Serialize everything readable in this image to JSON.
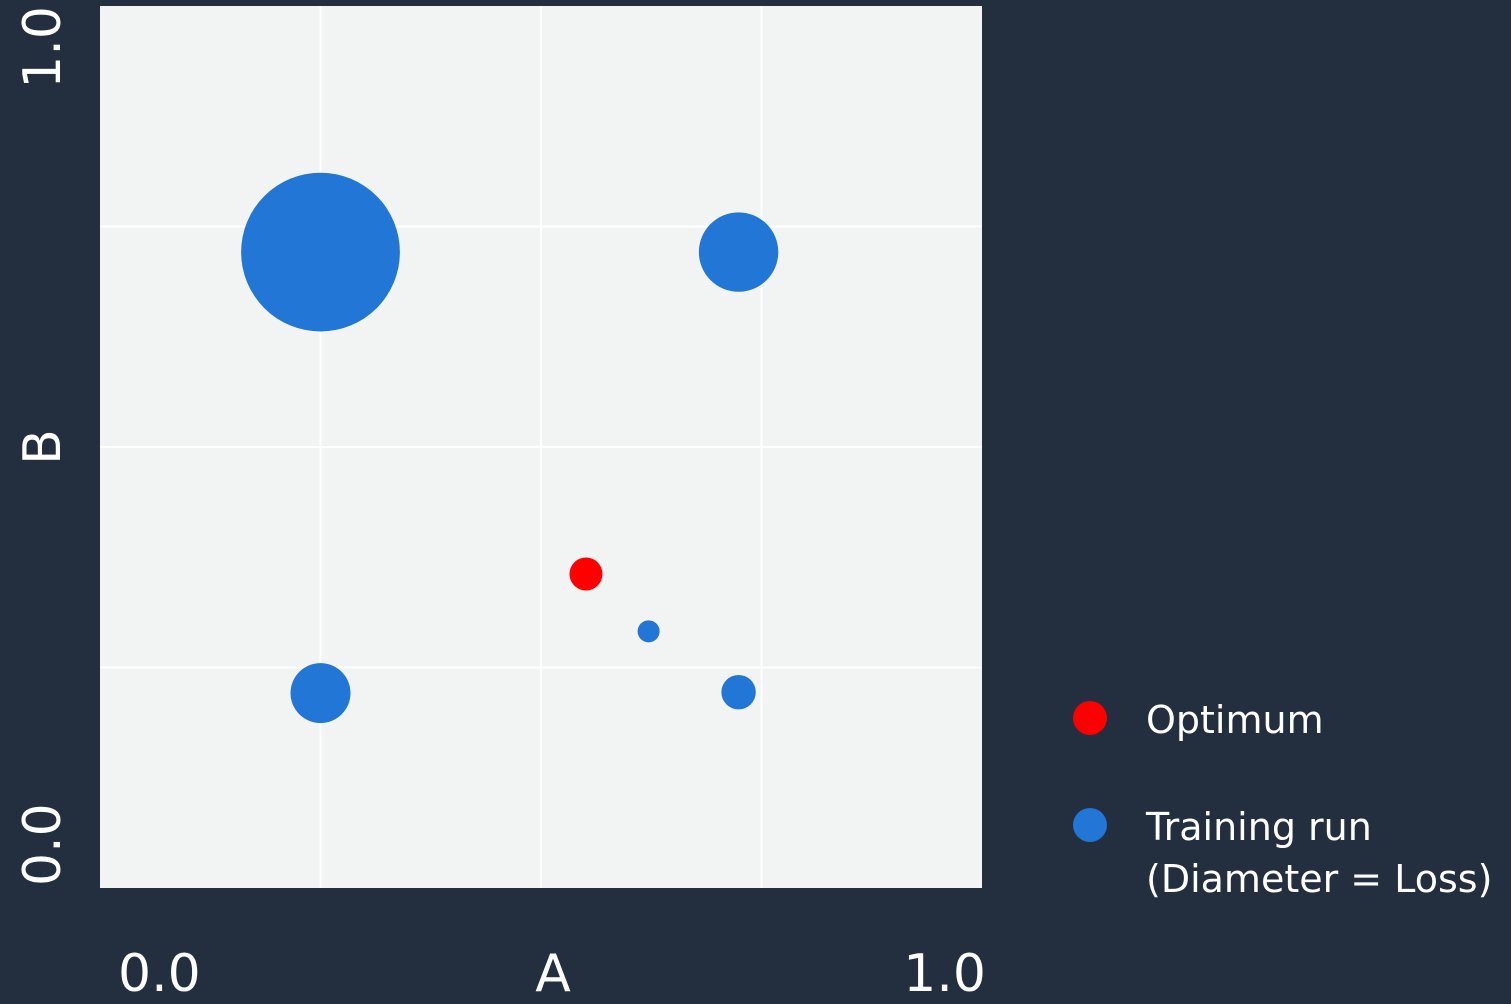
{
  "chart_data": {
    "type": "scatter",
    "xlabel": "A",
    "ylabel": "B",
    "xlim": [
      0,
      1
    ],
    "ylim": [
      0,
      1
    ],
    "xticks": [
      {
        "value": 0,
        "label": "0.0"
      },
      {
        "value": 1,
        "label": "1.0"
      }
    ],
    "yticks": [
      {
        "value": 0,
        "label": "0.0"
      },
      {
        "value": 1,
        "label": "1.0"
      }
    ],
    "xgrid": [
      0.25,
      0.5,
      0.75
    ],
    "ygrid": [
      0.25,
      0.5,
      0.75
    ],
    "grid": true,
    "legend": "right",
    "series": [
      {
        "name": "Optimum",
        "color": "#ff0000",
        "x": [
          0.551
        ],
        "y": [
          0.356
        ]
      },
      {
        "name": "Training run\n(Diameter = Loss)",
        "color": "#2176d6",
        "x": [
          0.25,
          0.724,
          0.25,
          0.622,
          0.724
        ],
        "y": [
          0.721,
          0.721,
          0.221,
          0.291,
          0.222
        ],
        "size": [
          0.18,
          0.09,
          0.068,
          0.025,
          0.039
        ]
      }
    ]
  }
}
